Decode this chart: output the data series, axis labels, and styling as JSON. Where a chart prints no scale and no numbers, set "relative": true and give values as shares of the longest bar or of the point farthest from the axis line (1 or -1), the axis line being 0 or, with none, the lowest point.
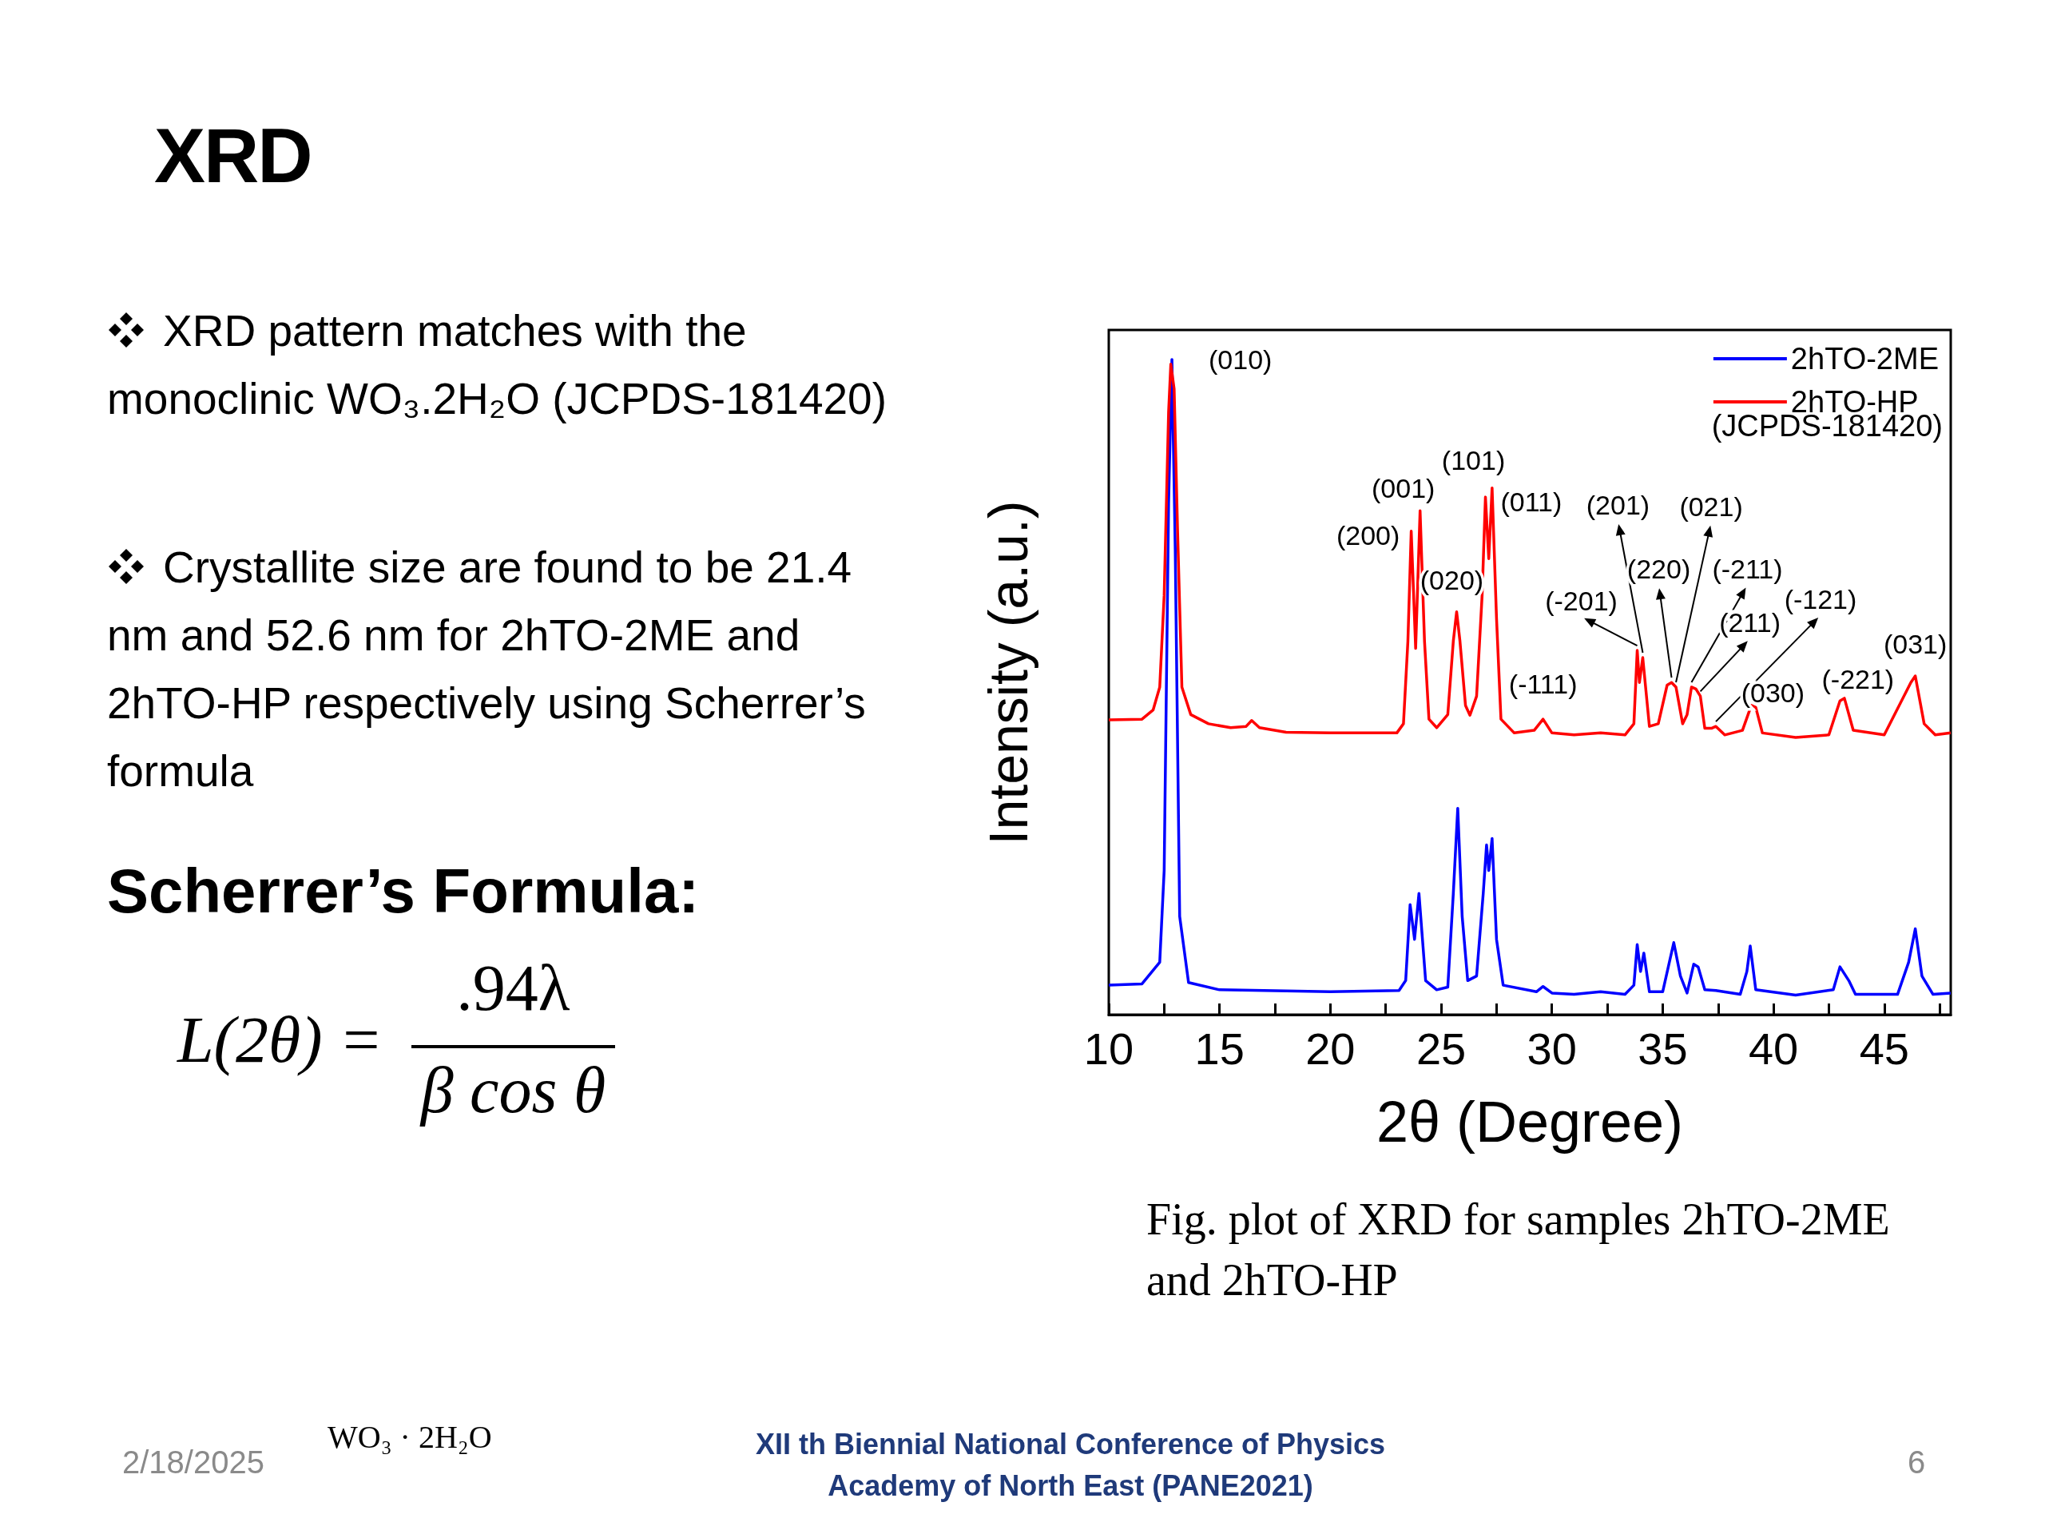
{
  "chart_data": {
    "type": "line",
    "title": "XRD",
    "xlabel": "2θ (Degree)",
    "ylabel": "Intensity (a.u.)",
    "relative": true,
    "xlim": [
      10,
      48
    ],
    "xticks": [
      10,
      {
        "value": 12.5,
        "label": null
      },
      15,
      {
        "value": 17.5,
        "label": null
      },
      20,
      {
        "value": 22.5,
        "label": null
      },
      25,
      {
        "value": 27.5,
        "label": null
      },
      30,
      {
        "value": 32.5,
        "label": null
      },
      35,
      {
        "value": 37.5,
        "label": null
      },
      40,
      {
        "value": 42.5,
        "label": null
      },
      45,
      {
        "value": 47.5,
        "label": null
      }
    ],
    "grid": false,
    "legend": "top right",
    "line_style": "solid",
    "series": [
      {
        "name": "2hTO-2ME",
        "color": "#0000ff",
        "x": [
          10,
          11.5,
          12.3,
          12.5,
          12.7,
          12.85,
          13,
          13.2,
          13.6,
          15,
          20,
          23.1,
          23.4,
          23.6,
          23.8,
          24,
          24.3,
          24.8,
          25.3,
          25.55,
          25.75,
          25.95,
          26.2,
          26.6,
          26.9,
          27.05,
          27.15,
          27.3,
          27.5,
          27.8,
          29.3,
          29.6,
          30,
          31,
          32.2,
          33.3,
          33.7,
          33.85,
          34,
          34.15,
          34.4,
          35,
          35.3,
          35.5,
          35.8,
          36.1,
          36.4,
          36.6,
          36.9,
          37.4,
          38.5,
          38.8,
          38.95,
          39.2,
          41,
          42.7,
          43,
          43.4,
          43.7,
          45.6,
          46.1,
          46.4,
          46.7,
          47.2,
          48
        ],
        "values": [
          0.045,
          0.047,
          0.08,
          0.22,
          0.78,
          1,
          0.71,
          0.15,
          0.049,
          0.038,
          0.035,
          0.037,
          0.052,
          0.168,
          0.115,
          0.185,
          0.052,
          0.038,
          0.042,
          0.185,
          0.315,
          0.15,
          0.052,
          0.059,
          0.185,
          0.259,
          0.22,
          0.269,
          0.115,
          0.045,
          0.035,
          0.043,
          0.033,
          0.031,
          0.035,
          0.031,
          0.045,
          0.107,
          0.066,
          0.094,
          0.035,
          0.035,
          0.08,
          0.11,
          0.059,
          0.033,
          0.077,
          0.073,
          0.038,
          0.037,
          0.031,
          0.066,
          0.105,
          0.038,
          0.03,
          0.038,
          0.073,
          0.052,
          0.031,
          0.031,
          0.08,
          0.131,
          0.059,
          0.031,
          0.033
        ]
      },
      {
        "name": "2hTO-HP",
        "color": "#ff0000",
        "x": [
          10,
          11.5,
          12,
          12.3,
          12.5,
          12.7,
          12.8,
          12.95,
          13.1,
          13.3,
          13.7,
          14.5,
          15.5,
          16.2,
          16.45,
          16.8,
          18,
          20,
          23,
          23.3,
          23.5,
          23.65,
          23.85,
          24.05,
          24.25,
          24.45,
          24.8,
          25.3,
          25.55,
          25.7,
          25.85,
          26.1,
          26.3,
          26.6,
          26.85,
          27,
          27.15,
          27.3,
          27.5,
          27.7,
          28.3,
          29.2,
          29.6,
          30,
          31,
          32.2,
          33.3,
          33.7,
          33.85,
          33.95,
          34.1,
          34.4,
          34.8,
          35.2,
          35.4,
          35.6,
          35.9,
          36.1,
          36.3,
          36.5,
          36.7,
          36.9,
          37.2,
          37.4,
          37.8,
          38.6,
          39,
          39.2,
          39.5,
          41,
          42.5,
          43,
          43.2,
          43.6,
          45,
          46.2,
          46.4,
          46.8,
          47.3,
          48
        ],
        "values": [
          0.45,
          0.451,
          0.465,
          0.5,
          0.64,
          0.92,
          0.993,
          0.955,
          0.745,
          0.5,
          0.458,
          0.444,
          0.438,
          0.44,
          0.449,
          0.438,
          0.431,
          0.43,
          0.43,
          0.444,
          0.57,
          0.738,
          0.559,
          0.769,
          0.57,
          0.451,
          0.438,
          0.458,
          0.57,
          0.615,
          0.57,
          0.472,
          0.457,
          0.486,
          0.64,
          0.79,
          0.696,
          0.804,
          0.605,
          0.451,
          0.43,
          0.434,
          0.451,
          0.43,
          0.427,
          0.43,
          0.427,
          0.444,
          0.556,
          0.507,
          0.545,
          0.44,
          0.444,
          0.503,
          0.507,
          0.5,
          0.444,
          0.458,
          0.5,
          0.497,
          0.486,
          0.437,
          0.437,
          0.44,
          0.427,
          0.434,
          0.472,
          0.469,
          0.43,
          0.423,
          0.427,
          0.479,
          0.483,
          0.434,
          0.427,
          0.507,
          0.517,
          0.444,
          0.427,
          0.43
        ]
      }
    ],
    "annotations": [
      "(JCPDS-181420)",
      "XRD pattern matches with the monoclinic WO₃.2H₂O (JCPDS-181420)",
      "Crystallite size are found to be 21.4 nm and 52.6 nm for 2hTO-2ME and 2hTO-HP respectively using Scherrer’s formula",
      "Scherrer’s Formula:",
      "L(2θ) =",
      ".94λ",
      "β cos θ",
      "Fig. plot of XRD for samples 2hTO-2ME and 2hTO-HP",
      "WO₃ · 2H₂O",
      "2/18/2025",
      "XII th  Biennial National Conference of Physics Academy of North East (PANE2021)",
      "6",
      {
        "text": "(010)",
        "x": 12.85,
        "y": 1
      },
      {
        "text": "(200)",
        "x": 23.65,
        "y": 0.738
      },
      {
        "text": "(001)",
        "x": 24.05,
        "y": 0.769
      },
      {
        "text": "(020)",
        "x": 25.7,
        "y": 0.615
      },
      {
        "text": "(101)",
        "x": 27,
        "y": 0.79
      },
      {
        "text": "(011)",
        "x": 27.3,
        "y": 0.804
      },
      {
        "text": "(-111)",
        "x": 29.6,
        "y": 0.451
      },
      {
        "text": "(-201)",
        "x": 33.85,
        "y": 0.556
      },
      {
        "text": "(201)",
        "x": 34.1,
        "y": 0.545
      },
      {
        "text": "(220)",
        "x": 35.4,
        "y": 0.507
      },
      {
        "text": "(021)",
        "x": 35.6,
        "y": 0.5
      },
      {
        "text": "(-211)",
        "x": 36.3,
        "y": 0.5
      },
      {
        "text": "(211)",
        "x": 36.7,
        "y": 0.486
      },
      {
        "text": "(-121)",
        "x": 37.4,
        "y": 0.44
      },
      {
        "text": "(030)",
        "x": 39,
        "y": 0.472
      },
      {
        "text": "(-221)",
        "x": 43.2,
        "y": 0.483
      },
      {
        "text": "(031)",
        "x": 46.4,
        "y": 0.517
      }
    ]
  }
}
